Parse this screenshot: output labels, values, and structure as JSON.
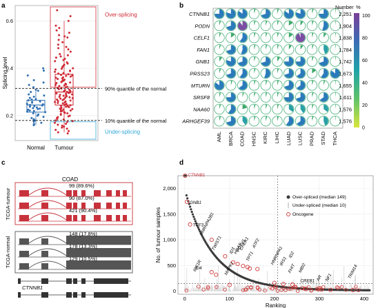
{
  "panel_letters": {
    "a": "a",
    "b": "b",
    "c": "c",
    "d": "d"
  },
  "chart_data": [
    {
      "panel": "a",
      "type": "box-strip",
      "ylabel": "Splicing level",
      "yticks": [
        0.2,
        0.4,
        0.6
      ],
      "ylim": [
        0.095,
        0.665
      ],
      "categories": [
        "Normal",
        "Tumour"
      ],
      "normal": {
        "q1": 0.215,
        "median": 0.245,
        "q3": 0.265,
        "whisker_low": 0.16,
        "whisker_high": 0.31,
        "points": [
          0.4,
          0.39,
          0.37,
          0.35,
          0.34,
          0.33,
          0.32,
          0.31,
          0.305,
          0.3,
          0.29,
          0.285,
          0.28,
          0.275,
          0.27,
          0.268,
          0.265,
          0.26,
          0.258,
          0.255,
          0.25,
          0.248,
          0.245,
          0.243,
          0.24,
          0.238,
          0.235,
          0.232,
          0.23,
          0.228,
          0.225,
          0.222,
          0.22,
          0.217,
          0.215,
          0.21,
          0.205,
          0.2,
          0.195,
          0.19,
          0.185,
          0.18,
          0.175,
          0.17,
          0.165,
          0.16
        ]
      },
      "tumour": {
        "q1": 0.245,
        "median": 0.3,
        "q3": 0.375,
        "whisker_low": 0.13,
        "whisker_high": 0.6,
        "points": [
          0.645,
          0.62,
          0.6,
          0.58,
          0.57,
          0.56,
          0.55,
          0.54,
          0.535,
          0.53,
          0.52,
          0.51,
          0.5,
          0.49,
          0.485,
          0.48,
          0.47,
          0.46,
          0.455,
          0.45,
          0.445,
          0.44,
          0.435,
          0.43,
          0.425,
          0.42,
          0.415,
          0.41,
          0.405,
          0.4,
          0.398,
          0.395,
          0.39,
          0.388,
          0.385,
          0.38,
          0.378,
          0.375,
          0.372,
          0.37,
          0.368,
          0.365,
          0.362,
          0.36,
          0.358,
          0.355,
          0.352,
          0.35,
          0.348,
          0.345,
          0.342,
          0.34,
          0.338,
          0.335,
          0.332,
          0.33,
          0.328,
          0.325,
          0.322,
          0.32,
          0.318,
          0.315,
          0.312,
          0.31,
          0.308,
          0.305,
          0.303,
          0.3,
          0.298,
          0.296,
          0.294,
          0.292,
          0.29,
          0.288,
          0.286,
          0.284,
          0.282,
          0.28,
          0.278,
          0.276,
          0.274,
          0.272,
          0.27,
          0.268,
          0.266,
          0.264,
          0.262,
          0.26,
          0.258,
          0.256,
          0.254,
          0.252,
          0.25,
          0.248,
          0.246,
          0.244,
          0.242,
          0.24,
          0.238,
          0.236,
          0.234,
          0.232,
          0.23,
          0.228,
          0.226,
          0.224,
          0.222,
          0.22,
          0.218,
          0.215,
          0.212,
          0.21,
          0.207,
          0.204,
          0.2,
          0.197,
          0.194,
          0.19,
          0.187,
          0.184,
          0.18,
          0.177,
          0.174,
          0.17,
          0.166,
          0.162,
          0.158,
          0.154,
          0.15,
          0.145,
          0.14,
          0.135,
          0.13,
          0.125
        ]
      },
      "threshold_90": {
        "value": 0.315,
        "label": "90% quantile of the normal"
      },
      "threshold_10": {
        "value": 0.18,
        "label": "10% quantile of the normal"
      },
      "over_label": "Over-splicing",
      "under_label": "Under-splicing",
      "colors": {
        "normal": "#2e6fb0",
        "tumour": "#cf2a35",
        "under": "#2fa8d8"
      }
    },
    {
      "panel": "b",
      "type": "dot-pie-matrix",
      "genes": [
        "CTNNB1",
        "PODN",
        "CELF1",
        "FAN1",
        "GNB1",
        "PRSS23",
        "MTURN",
        "SRSF8",
        "NAA60",
        "ARHGEF39"
      ],
      "cancers": [
        "AML",
        "BRCA",
        "COAD",
        "HNSC",
        "KIRC",
        "LIHC",
        "LUAD",
        "LUSC",
        "PRAD",
        "STAD",
        "THCA"
      ],
      "numbers": [
        "2,251",
        "1,904",
        "1,838",
        "1,784",
        "1,742",
        "1,673",
        "1,655",
        "1,611",
        "1,576",
        "1,576"
      ],
      "percent": [
        [
          0.75,
          0.8,
          0.85,
          0.05,
          0.7,
          0.05,
          0.85,
          0.8,
          0.05,
          0.75,
          0.02
        ],
        [
          0.05,
          0.7,
          0.9,
          0.05,
          0.05,
          0.05,
          0.15,
          0.1,
          0.05,
          0.55,
          0.02
        ],
        [
          0.05,
          0.15,
          0.6,
          0.05,
          0.05,
          0.05,
          0.15,
          0.95,
          0.05,
          0.1,
          0.02
        ],
        [
          0.05,
          0.7,
          0.55,
          0.05,
          0.05,
          0.05,
          0.1,
          0.1,
          0.05,
          0.45,
          0.02
        ],
        [
          0.1,
          0.8,
          0.7,
          0.05,
          0.7,
          0.1,
          0.75,
          0.75,
          0.05,
          0.7,
          0.02
        ],
        [
          0.05,
          0.7,
          0.6,
          0.05,
          0.55,
          0.05,
          0.7,
          0.65,
          0.15,
          0.6,
          0.85
        ],
        [
          0.85,
          0.05,
          0.65,
          0.05,
          0.05,
          0.05,
          0.7,
          0.65,
          0.05,
          0.05,
          0.02
        ],
        [
          0.05,
          0.75,
          0.05,
          0.05,
          0.05,
          0.05,
          0.75,
          0.7,
          0.05,
          0.65,
          0.02
        ],
        [
          0.05,
          0.6,
          0.2,
          0.05,
          0.05,
          0.05,
          0.35,
          0.4,
          0.05,
          0.35,
          0.02
        ],
        [
          0.05,
          0.7,
          0.4,
          0.05,
          0.05,
          0.05,
          0.6,
          0.65,
          0.05,
          0.45,
          0.02
        ]
      ],
      "legend_title": "Number",
      "legend_title2": "%",
      "legend_ticks": [
        "100",
        "80",
        "60",
        "40",
        "20",
        "0"
      ],
      "colors": {
        "ring": "#59b886",
        "fill": "#2b8cbe"
      }
    },
    {
      "panel": "c",
      "type": "sashimi-schematic",
      "group_label": "COAD",
      "tracks": [
        {
          "name": "TCGA-tumour",
          "rows": [
            {
              "label": "99 (89.6%)"
            },
            {
              "label": "90 (87.0%)"
            },
            {
              "label": "421 (90.4%)"
            }
          ],
          "color": "#c8323c"
        },
        {
          "name": "TCGA-normal",
          "rows": [
            {
              "label": "148 (17.8%)"
            },
            {
              "label": "178 (13.3%)"
            },
            {
              "label": "129 (10.5%)"
            }
          ],
          "color": "#555555"
        }
      ],
      "gene": "CTNNB1"
    },
    {
      "panel": "d",
      "type": "rank-scatter",
      "xlabel": "Ranking",
      "ylabel": "No. of tumour samples",
      "xticks": [
        0,
        100,
        200,
        300,
        400
      ],
      "yticks": [
        "0",
        "500",
        "1,000",
        "1,500",
        "2,000"
      ],
      "ytick_values": [
        0,
        500,
        1000,
        1500,
        2000
      ],
      "xlim": [
        -15,
        420
      ],
      "ylim": [
        -60,
        2250
      ],
      "vline": 207,
      "hline": 149,
      "legend": [
        "Over-spliced (median 149)",
        "Under-spliced (median 10)",
        "Oncogene"
      ],
      "genes": [
        {
          "name": "CTNNB1",
          "x": 1,
          "y": 2251
        },
        {
          "name": "GNB1",
          "x": 5,
          "y": 1742
        },
        {
          "name": "TCF3",
          "x": 12,
          "y": 1300
        },
        {
          "name": "HNRNPA2B1",
          "x": 60,
          "y": 1000
        },
        {
          "name": "TWIST1",
          "x": 90,
          "y": 680
        },
        {
          "name": "ID3",
          "x": 108,
          "y": 560
        },
        {
          "name": "HRAS",
          "x": 118,
          "y": 530
        },
        {
          "name": "PDTV1",
          "x": 130,
          "y": 490
        },
        {
          "name": "CHEK1",
          "x": 140,
          "y": 470
        },
        {
          "name": "ATF2",
          "x": 162,
          "y": 430
        },
        {
          "name": "TPT1",
          "x": 145,
          "y": 440
        },
        {
          "name": "ID4",
          "x": 60,
          "y": 370
        },
        {
          "name": "IGF1R",
          "x": 70,
          "y": 320
        },
        {
          "name": "MAPK1",
          "x": 100,
          "y": 120
        },
        {
          "name": "HNRNPA1",
          "x": 200,
          "y": 160
        },
        {
          "name": "IRS1",
          "x": 220,
          "y": 140
        },
        {
          "name": "ID2",
          "x": 240,
          "y": 130
        },
        {
          "name": "FHIT",
          "x": 245,
          "y": 80
        },
        {
          "name": "MBI2",
          "x": 262,
          "y": 60
        },
        {
          "name": "CREB1",
          "x": 270,
          "y": 40
        },
        {
          "name": "AR",
          "x": 305,
          "y": 30
        },
        {
          "name": "NF1",
          "x": 325,
          "y": 25
        },
        {
          "name": "TRIM14",
          "x": 375,
          "y": 20
        }
      ]
    }
  ]
}
